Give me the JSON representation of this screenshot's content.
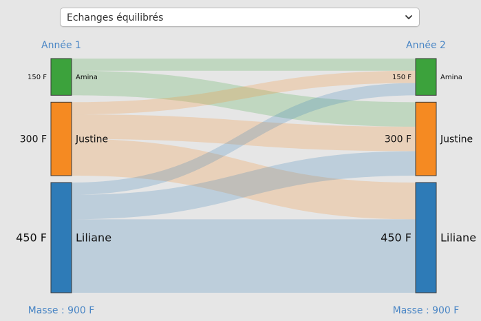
{
  "dropdown": {
    "value": "Echanges équilibrés"
  },
  "sankey": {
    "left_header": "Année 1",
    "right_header": "Année 2",
    "left_footer": "Masse : 900 F",
    "right_footer": "Masse : 900 F",
    "colors": {
      "header": "#4a86c5",
      "node_border": "#3a3a3a",
      "text": "#111111"
    },
    "nodes": [
      {
        "id": "amina",
        "name": "Amina",
        "amount": 150,
        "label": "150 F",
        "color": "#3ca23c"
      },
      {
        "id": "justine",
        "name": "Justine",
        "amount": 300,
        "label": "300 F",
        "color": "#f58a22"
      },
      {
        "id": "liliane",
        "name": "Liliane",
        "amount": 450,
        "label": "450 F",
        "color": "#2e7bb7"
      }
    ],
    "flows": [
      {
        "from": "amina",
        "to": "amina",
        "value": 50
      },
      {
        "from": "amina",
        "to": "justine",
        "value": 100
      },
      {
        "from": "justine",
        "to": "amina",
        "value": 50
      },
      {
        "from": "justine",
        "to": "justine",
        "value": 100
      },
      {
        "from": "justine",
        "to": "liliane",
        "value": 150
      },
      {
        "from": "liliane",
        "to": "amina",
        "value": 50
      },
      {
        "from": "liliane",
        "to": "justine",
        "value": 100
      },
      {
        "from": "liliane",
        "to": "liliane",
        "value": 300
      }
    ]
  }
}
